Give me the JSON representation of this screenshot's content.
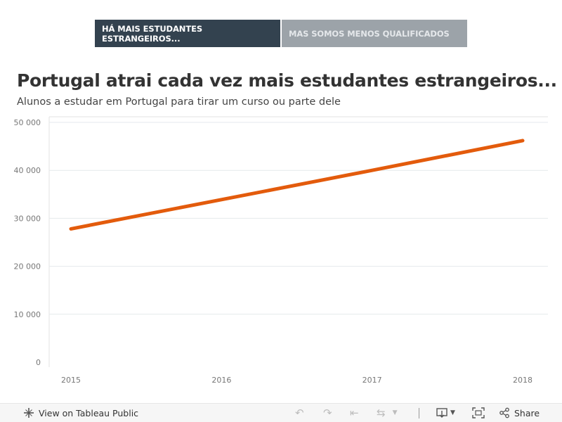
{
  "tabs": [
    {
      "label": "HÁ MAIS ESTUDANTES ESTRANGEIROS...",
      "active": true
    },
    {
      "label": "MAS SOMOS MENOS QUALIFICADOS",
      "active": false
    }
  ],
  "chart_data": {
    "type": "line",
    "title": "Portugal atrai cada vez mais estudantes estrangeiros...",
    "subtitle": "Alunos a estudar em Portugal para tirar um curso ou parte dele",
    "xlabel": "",
    "ylabel": "",
    "categories": [
      "2015",
      "2016",
      "2017",
      "2018"
    ],
    "series": [
      {
        "values": [
          27800,
          33900,
          40000,
          46200
        ],
        "color": "#e35b0c"
      }
    ],
    "yticks": [
      0,
      10000,
      20000,
      30000,
      40000,
      50000
    ],
    "ytick_labels": [
      "0",
      "10 000",
      "20 000",
      "30 000",
      "40 000",
      "50 000"
    ],
    "ylim": [
      0,
      50000
    ],
    "grid": true,
    "legend": "none"
  },
  "toolbar": {
    "view_label": "View on Tableau Public",
    "share_label": "Share"
  },
  "icons": {
    "tableau": "tableau-plus-icon",
    "undo": "undo-icon",
    "redo": "redo-icon",
    "revert": "revert-icon",
    "refresh": "refresh-icon",
    "download": "download-icon",
    "fullscreen": "fullscreen-icon",
    "share": "share-icon"
  }
}
